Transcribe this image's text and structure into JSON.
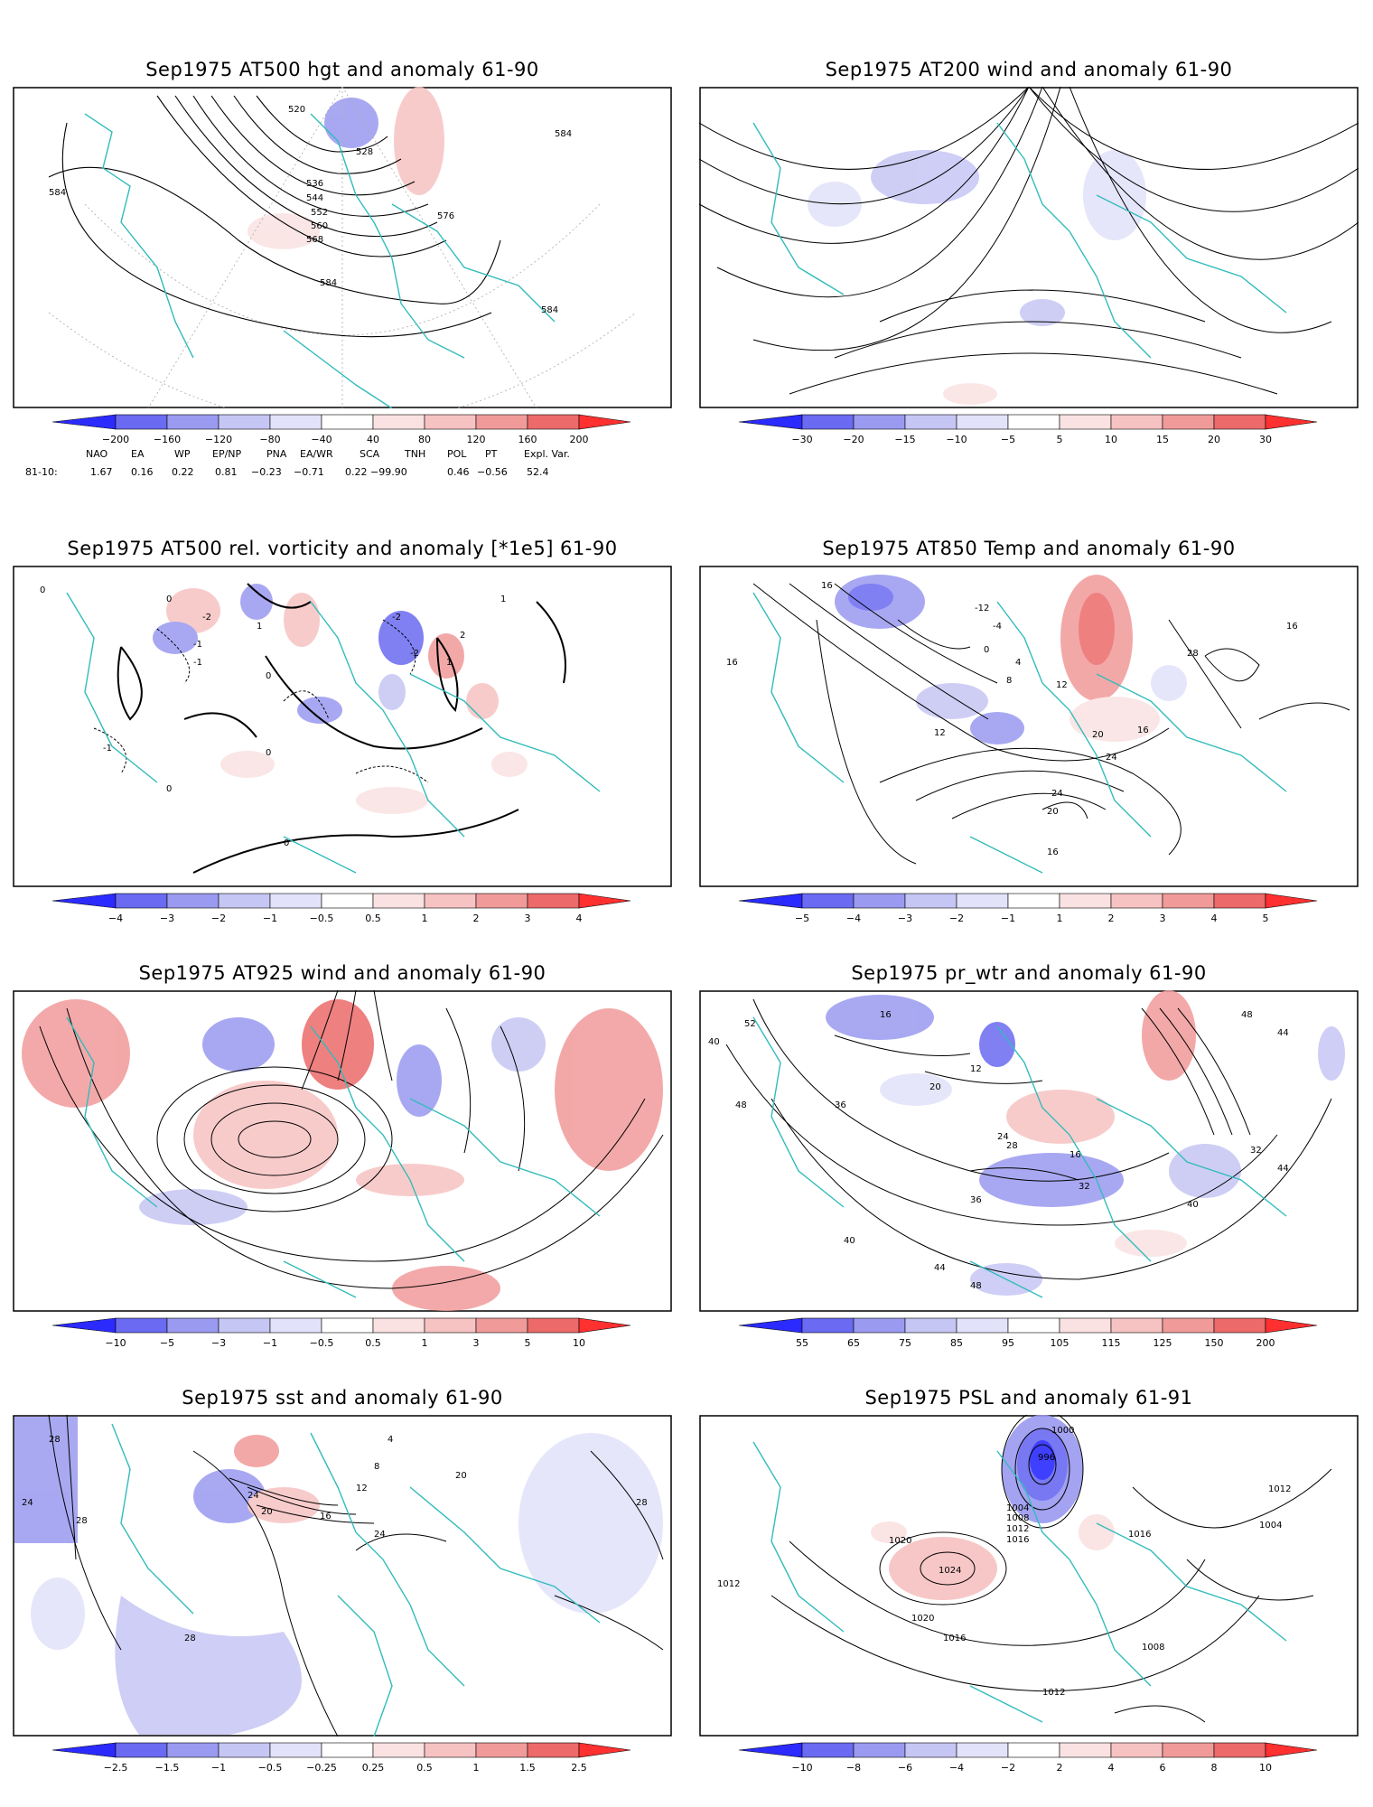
{
  "panels": [
    {
      "id": "p1",
      "title": "Sep1975 AT500 hgt and anomaly 61-90",
      "contour_labels": [
        "520",
        "528",
        "536",
        "544",
        "552",
        "560",
        "568",
        "576",
        "584",
        "584",
        "584",
        "584"
      ],
      "colorbar": {
        "labels": [
          "−200",
          "−160",
          "−120",
          "−80",
          "−40",
          "40",
          "80",
          "120",
          "160",
          "200"
        ]
      }
    },
    {
      "id": "p2",
      "title": "Sep1975 AT200 wind and anomaly 61-90",
      "contour_labels": [],
      "colorbar": {
        "labels": [
          "−30",
          "−20",
          "−15",
          "−10",
          "−5",
          "5",
          "10",
          "15",
          "20",
          "30"
        ]
      }
    },
    {
      "id": "p3",
      "title": "Sep1975 AT500 rel. vorticity and anomaly [*1e5] 61-90",
      "contour_labels": [
        "0",
        "0",
        "-1",
        "-2",
        "1",
        "2",
        "-1",
        "0",
        "-2",
        "1",
        "0",
        "-1",
        "0",
        "-2",
        "1",
        "0"
      ],
      "colorbar": {
        "labels": [
          "−4",
          "−3",
          "−2",
          "−1",
          "−0.5",
          "0.5",
          "1",
          "2",
          "3",
          "4"
        ]
      }
    },
    {
      "id": "p4",
      "title": "Sep1975 AT850 Temp and anomaly 61-90",
      "contour_labels": [
        "16",
        "12",
        "-12",
        "-4",
        "0",
        "4",
        "8",
        "12",
        "16",
        "20",
        "24",
        "28",
        "16",
        "24",
        "20",
        "16",
        "16"
      ],
      "colorbar": {
        "labels": [
          "−5",
          "−4",
          "−3",
          "−2",
          "−1",
          "1",
          "2",
          "3",
          "4",
          "5"
        ]
      }
    },
    {
      "id": "p5",
      "title": "Sep1975 AT925 wind and anomaly 61-90",
      "contour_labels": [],
      "colorbar": {
        "labels": [
          "−10",
          "−5",
          "−3",
          "−1",
          "−0.5",
          "0.5",
          "1",
          "3",
          "5",
          "10"
        ]
      }
    },
    {
      "id": "p6",
      "title": "Sep1975 pr_wtr and anomaly 61-90",
      "contour_labels": [
        "40",
        "52",
        "48",
        "16",
        "12",
        "20",
        "36",
        "40",
        "44",
        "48",
        "36",
        "16",
        "24",
        "28",
        "32",
        "40",
        "44",
        "32",
        "48",
        "44"
      ],
      "colorbar": {
        "labels": [
          "55",
          "65",
          "75",
          "85",
          "95",
          "105",
          "115",
          "125",
          "150",
          "200"
        ]
      }
    },
    {
      "id": "p7",
      "title": "Sep1975 sst and anomaly 61-90",
      "contour_labels": [
        "28",
        "24",
        "28",
        "4",
        "8",
        "12",
        "16",
        "20",
        "24",
        "20",
        "28",
        "24",
        "28"
      ],
      "colorbar": {
        "labels": [
          "−2.5",
          "−1.5",
          "−1",
          "−0.5",
          "−0.25",
          "0.25",
          "0.5",
          "1",
          "1.5",
          "2.5"
        ]
      }
    },
    {
      "id": "p8",
      "title": "Sep1975 PSL and anomaly 61-91",
      "contour_labels": [
        "1000",
        "996",
        "1004",
        "1008",
        "1012",
        "1016",
        "1020",
        "1024",
        "1016",
        "1012",
        "1020",
        "1008",
        "1004",
        "1012",
        "1016",
        "1012"
      ],
      "colorbar": {
        "labels": [
          "−10",
          "−8",
          "−6",
          "−4",
          "−2",
          "2",
          "4",
          "6",
          "8",
          "10"
        ]
      }
    }
  ],
  "indices": {
    "header_names": [
      "NAO",
      "EA",
      "WP",
      "EP/NP",
      "PNA",
      "EA/WR",
      "SCA",
      "TNH",
      "POL",
      "PT",
      "Expl. Var."
    ],
    "row_label": "81-10:",
    "row_values": [
      "1.67",
      "0.16",
      "0.22",
      "0.81",
      "−0.23",
      "−0.71",
      "0.22",
      "−99.90",
      "0.46",
      "−0.56",
      "52.4"
    ]
  },
  "colors": {
    "coastline": "#33bbbb",
    "contour": "#000000",
    "grid": "#aaaaaa",
    "scale_negative": [
      "#2b2bff",
      "#6a6af2",
      "#9a9af0",
      "#c6c6f4",
      "#e2e2fa"
    ],
    "scale_positive": [
      "#fae2e2",
      "#f7c2c2",
      "#f19a9a",
      "#ec6a6a",
      "#ff3030"
    ]
  }
}
